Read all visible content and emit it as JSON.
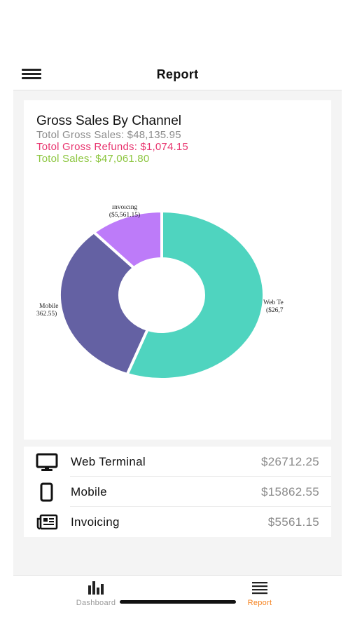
{
  "nav": {
    "title": "Report",
    "menu_icon": "hamburger-menu-icon"
  },
  "chart_card": {
    "title": "Gross Sales By Channel",
    "gross_sales": "Totol Gross Sales: $48,135.95",
    "gross_refunds": "Totol Gross Refunds: $1,074.15",
    "total_sales": "Totol Sales: $47,061.80"
  },
  "chart_data": {
    "type": "pie",
    "donut": true,
    "title": "",
    "slice_labels_visible": [
      {
        "name": "Invoicing",
        "value_text": "($5,561.15)"
      },
      {
        "name": "Mobile",
        "value_text": "362.55)"
      },
      {
        "name": "Web Te",
        "value_text": "($26,7"
      }
    ],
    "categories": [
      "Web Terminal",
      "Mobile",
      "Invoicing"
    ],
    "values": [
      26712.25,
      15862.55,
      5561.15
    ],
    "colors": [
      "#4fd4bf",
      "#6461a3",
      "#bd7bf9"
    ]
  },
  "channels": [
    {
      "name": "Web Terminal",
      "amount": "$26712.25",
      "icon": "desktop-monitor-icon"
    },
    {
      "name": "Mobile",
      "amount": "$15862.55",
      "icon": "mobile-phone-icon"
    },
    {
      "name": "Invoicing",
      "amount": "$5561.15",
      "icon": "newspaper-invoice-icon"
    }
  ],
  "tabs": [
    {
      "label": "Dashboard",
      "icon": "bar-chart-icon",
      "active": false
    },
    {
      "label": "Report",
      "icon": "list-lines-icon",
      "active": true
    }
  ],
  "colors": {
    "accent": "#f5821f",
    "refunds": "#e8356f",
    "total": "#8cc63f",
    "muted": "#8c8c8c"
  }
}
